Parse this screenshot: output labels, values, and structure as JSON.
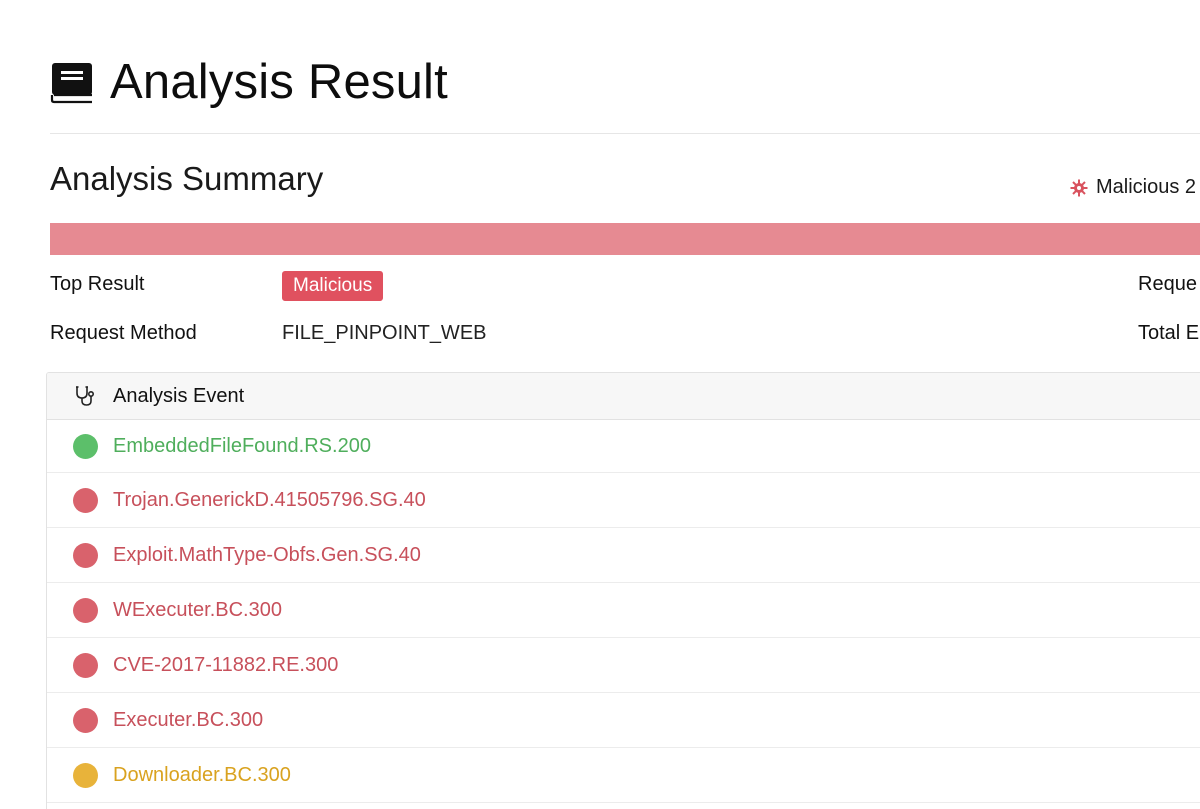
{
  "header": {
    "title": "Analysis Result",
    "icon": "book-icon"
  },
  "summary": {
    "title": "Analysis Summary",
    "count_label": "Malicious 2",
    "count_icon": "gear-icon",
    "bar_color": "#e68a92",
    "top_result_label": "Top Result",
    "top_result_badge": "Malicious",
    "top_result_color": "#e0515f",
    "request_method_label": "Request Method",
    "request_method_value": "FILE_PINPOINT_WEB",
    "right_label_1": "Reque",
    "right_label_2": "Total E"
  },
  "events": {
    "header_label": "Analysis Event",
    "header_icon": "stethoscope-icon",
    "items": [
      {
        "name": "EmbeddedFileFound.RS.200",
        "status": "benign",
        "color": "#5cbf6a",
        "text_color": "#4fae5c"
      },
      {
        "name": "Trojan.GenerickD.41505796.SG.40",
        "status": "malicious",
        "color": "#d9626c",
        "text_color": "#c7505b"
      },
      {
        "name": "Exploit.MathType-Obfs.Gen.SG.40",
        "status": "malicious",
        "color": "#d9626c",
        "text_color": "#c7505b"
      },
      {
        "name": "WExecuter.BC.300",
        "status": "malicious",
        "color": "#d9626c",
        "text_color": "#c7505b"
      },
      {
        "name": "CVE-2017-11882.RE.300",
        "status": "malicious",
        "color": "#d9626c",
        "text_color": "#c7505b"
      },
      {
        "name": "Executer.BC.300",
        "status": "malicious",
        "color": "#d9626c",
        "text_color": "#c7505b"
      },
      {
        "name": "Downloader.BC.300",
        "status": "suspicious",
        "color": "#e8b33a",
        "text_color": "#d9a21f"
      }
    ]
  }
}
